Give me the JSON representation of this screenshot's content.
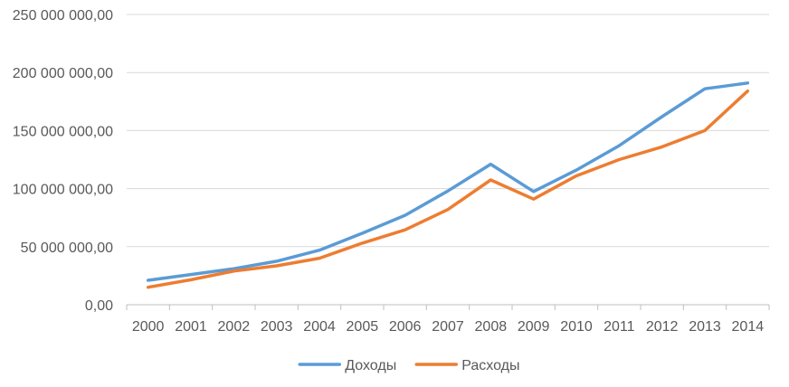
{
  "chart_data": {
    "type": "line",
    "title": "",
    "xlabel": "",
    "ylabel": "",
    "categories": [
      "2000",
      "2001",
      "2002",
      "2003",
      "2004",
      "2005",
      "2006",
      "2007",
      "2008",
      "2009",
      "2010",
      "2011",
      "2012",
      "2013",
      "2014"
    ],
    "series": [
      {
        "name": "Доходы",
        "color": "#5b9bd5",
        "values": [
          21000000,
          26000000,
          31000000,
          37500000,
          47000000,
          61500000,
          77000000,
          98000000,
          121000000,
          97500000,
          116000000,
          137000000,
          162000000,
          186000000,
          191000000
        ]
      },
      {
        "name": "Расходы",
        "color": "#ed7d31",
        "values": [
          15000000,
          21500000,
          29000000,
          33500000,
          40000000,
          53000000,
          64500000,
          82000000,
          107500000,
          91000000,
          111000000,
          125000000,
          136000000,
          150000000,
          184000000
        ]
      }
    ],
    "ylim": [
      0,
      250000000
    ],
    "yticks": [
      0,
      50000000,
      100000000,
      150000000,
      200000000,
      250000000
    ],
    "ytick_labels": [
      "0,00",
      "50 000 000,00",
      "100 000 000,00",
      "150 000 000,00",
      "200 000 000,00",
      "250 000 000,00"
    ],
    "grid": true,
    "legend_position": "bottom"
  }
}
